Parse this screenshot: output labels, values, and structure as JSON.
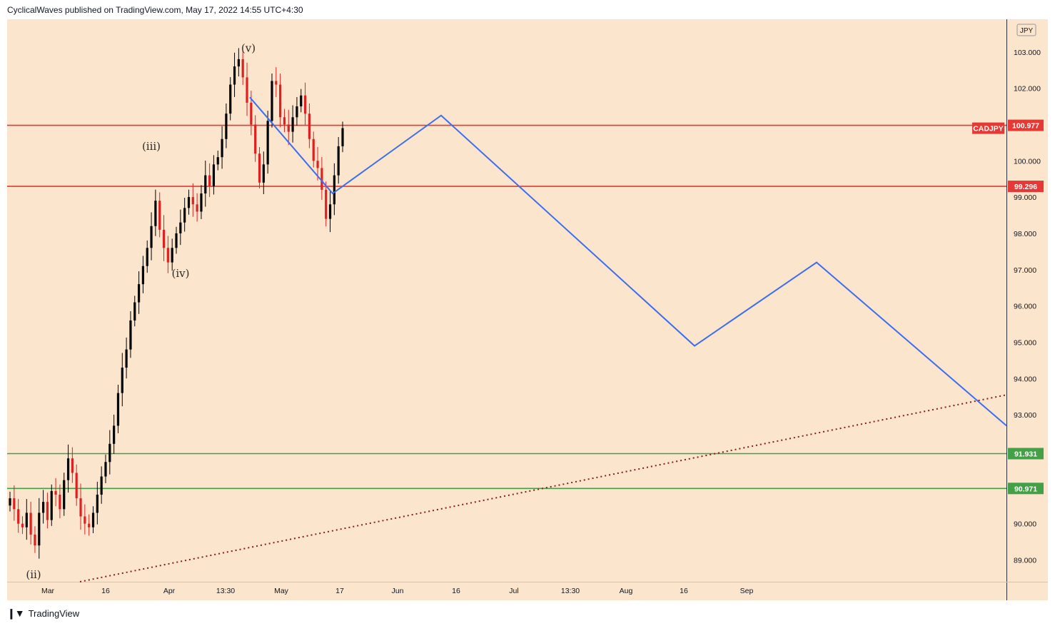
{
  "header": {
    "publish_text": "CyclicalWaves published on TradingView.com, May 17, 2022 14:55 UTC+4:30"
  },
  "footer": {
    "logo_icon": "tradingview-logo-icon",
    "brand": "TradingView"
  },
  "colors": {
    "background": "#fbe5cd",
    "candle_up": "#000000",
    "candle_down": "#e02020",
    "resistance": "#e53935",
    "support": "#43a047",
    "projection": "#3c6ef0",
    "trendline": "#8b1a1a",
    "axis_text": "#131722"
  },
  "chart_data": {
    "type": "candlestick",
    "symbol": "CADJPY",
    "currency": "JPY",
    "last_price": 100.977,
    "y_range": [
      88.4,
      103.9
    ],
    "y_ticks": [
      89,
      90,
      91,
      92,
      93,
      94,
      95,
      96,
      97,
      98,
      99,
      100,
      101,
      102,
      103
    ],
    "y_tick_labels": [
      "89.000",
      "90.000",
      "91.000",
      "92.000",
      "93.000",
      "94.000",
      "95.000",
      "96.000",
      "97.000",
      "98.000",
      "99.000",
      "100.000",
      "101.000",
      "102.000",
      "103.000"
    ],
    "x_tick_labels": [
      "Mar",
      "16",
      "Apr",
      "13:30",
      "May",
      "17",
      "Jun",
      "16",
      "Jul",
      "13:30",
      "Aug",
      "16",
      "Sep"
    ],
    "horizontal_levels": [
      {
        "price": 100.977,
        "label": "100.977",
        "color": "resistance"
      },
      {
        "price": 99.296,
        "label": "99.296",
        "color": "resistance"
      },
      {
        "price": 91.931,
        "label": "91.931",
        "color": "support"
      },
      {
        "price": 90.971,
        "label": "90.971",
        "color": "support"
      }
    ],
    "wave_labels": [
      {
        "text": "(ii)",
        "price": 88.6
      },
      {
        "text": "(iii)",
        "price": 100.4
      },
      {
        "text": "(iv)",
        "price": 96.9
      },
      {
        "text": "(v)",
        "price": 103.1
      }
    ],
    "projection_path": [
      101.75,
      99.1,
      101.25,
      94.9,
      97.2,
      92.7
    ],
    "trendline": {
      "start_price": 88.4,
      "end_price": 93.55,
      "style": "dotted"
    },
    "price_series": [
      90.7,
      90.4,
      90.0,
      89.9,
      90.3,
      89.7,
      89.4,
      90.3,
      90.6,
      90.1,
      90.9,
      90.8,
      90.4,
      91.2,
      91.8,
      91.4,
      90.7,
      90.2,
      90.0,
      89.9,
      90.3,
      90.8,
      91.3,
      91.7,
      92.2,
      92.7,
      93.6,
      94.3,
      94.8,
      95.6,
      96.1,
      96.6,
      97.1,
      97.6,
      98.2,
      98.9,
      98.1,
      97.6,
      97.2,
      97.6,
      98.0,
      98.3,
      98.7,
      99.0,
      98.8,
      98.6,
      99.1,
      99.6,
      99.3,
      99.9,
      100.1,
      100.6,
      101.3,
      102.1,
      102.6,
      102.8,
      102.3,
      101.6,
      101.0,
      100.2,
      99.4,
      99.9,
      101.1,
      102.2,
      102.1,
      101.2,
      101.0,
      100.8,
      101.2,
      101.5,
      101.8,
      101.3,
      100.6,
      100.0,
      99.8,
      99.2,
      98.4,
      98.8,
      99.6,
      100.4,
      100.9
    ]
  }
}
